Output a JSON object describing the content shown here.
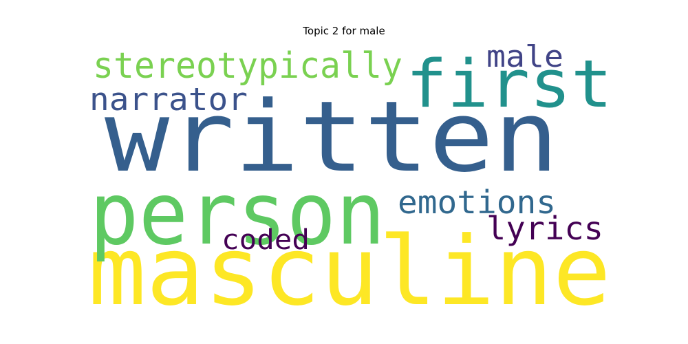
{
  "chart_data": {
    "type": "wordcloud",
    "title": "Topic 2 for male",
    "words": [
      {
        "text": "written",
        "weight": 1.0,
        "color": "#355f8d"
      },
      {
        "text": "masculine",
        "weight": 0.95,
        "color": "#fde725"
      },
      {
        "text": "person",
        "weight": 0.9,
        "color": "#5ec962"
      },
      {
        "text": "first",
        "weight": 0.55,
        "color": "#21918c"
      },
      {
        "text": "stereotypically",
        "weight": 0.35,
        "color": "#7ad151"
      },
      {
        "text": "narrator",
        "weight": 0.3,
        "color": "#3b528b"
      },
      {
        "text": "emotions",
        "weight": 0.3,
        "color": "#31688e"
      },
      {
        "text": "male",
        "weight": 0.25,
        "color": "#414487"
      },
      {
        "text": "lyrics",
        "weight": 0.25,
        "color": "#440154"
      },
      {
        "text": "coded",
        "weight": 0.22,
        "color": "#440154"
      }
    ]
  }
}
